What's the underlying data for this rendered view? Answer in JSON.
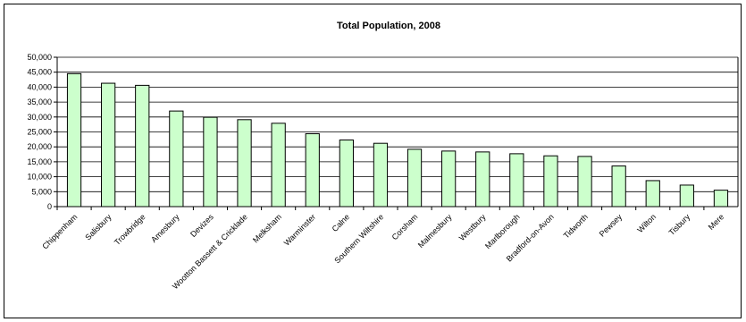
{
  "chart_data": {
    "type": "bar",
    "title": "Total Population, 2008",
    "xlabel": "",
    "ylabel": "",
    "ylim": [
      0,
      50000
    ],
    "yticks": [
      "0",
      "5,000",
      "10,000",
      "15,000",
      "20,000",
      "25,000",
      "30,000",
      "35,000",
      "40,000",
      "45,000",
      "50,000"
    ],
    "grid": true,
    "legend": "none",
    "bar_color": "#ccffcc",
    "categories": [
      "Chippenham",
      "Salisbury",
      "Trowbridge",
      "Amesbury",
      "Devizes",
      "Wootton Bassett & Cricklade",
      "Melksham",
      "Warminster",
      "Calne",
      "Southern Wiltshire",
      "Corsham",
      "Malmesbury",
      "Westbury",
      "Marlborough",
      "Bradford-on-Avon",
      "Tidworth",
      "Pewsey",
      "Wilton",
      "Tisbury",
      "Mere"
    ],
    "values": [
      44500,
      41300,
      40600,
      32000,
      29900,
      29100,
      27900,
      24400,
      22300,
      21200,
      19200,
      18600,
      18300,
      17700,
      17000,
      16800,
      13600,
      8700,
      7200,
      5500
    ]
  }
}
